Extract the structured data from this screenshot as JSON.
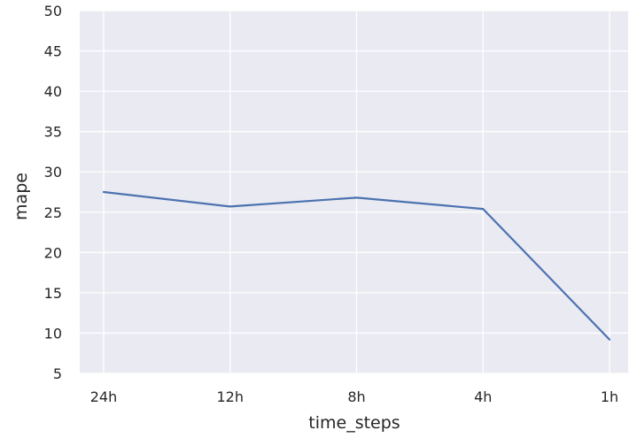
{
  "chart_data": {
    "type": "line",
    "categories": [
      "24h",
      "12h",
      "8h",
      "4h",
      "1h"
    ],
    "series": [
      {
        "values": [
          27.5,
          25.7,
          26.8,
          25.4,
          9.2
        ]
      }
    ],
    "xlabel": "time_steps",
    "ylabel": "mape",
    "ylim": [
      5,
      50
    ],
    "yticks": [
      5,
      10,
      15,
      20,
      25,
      30,
      35,
      40,
      45,
      50
    ],
    "grid": true,
    "line_color": "#4c72b0",
    "background_color": "#eaeaf2",
    "grid_color": "#ffffff"
  }
}
